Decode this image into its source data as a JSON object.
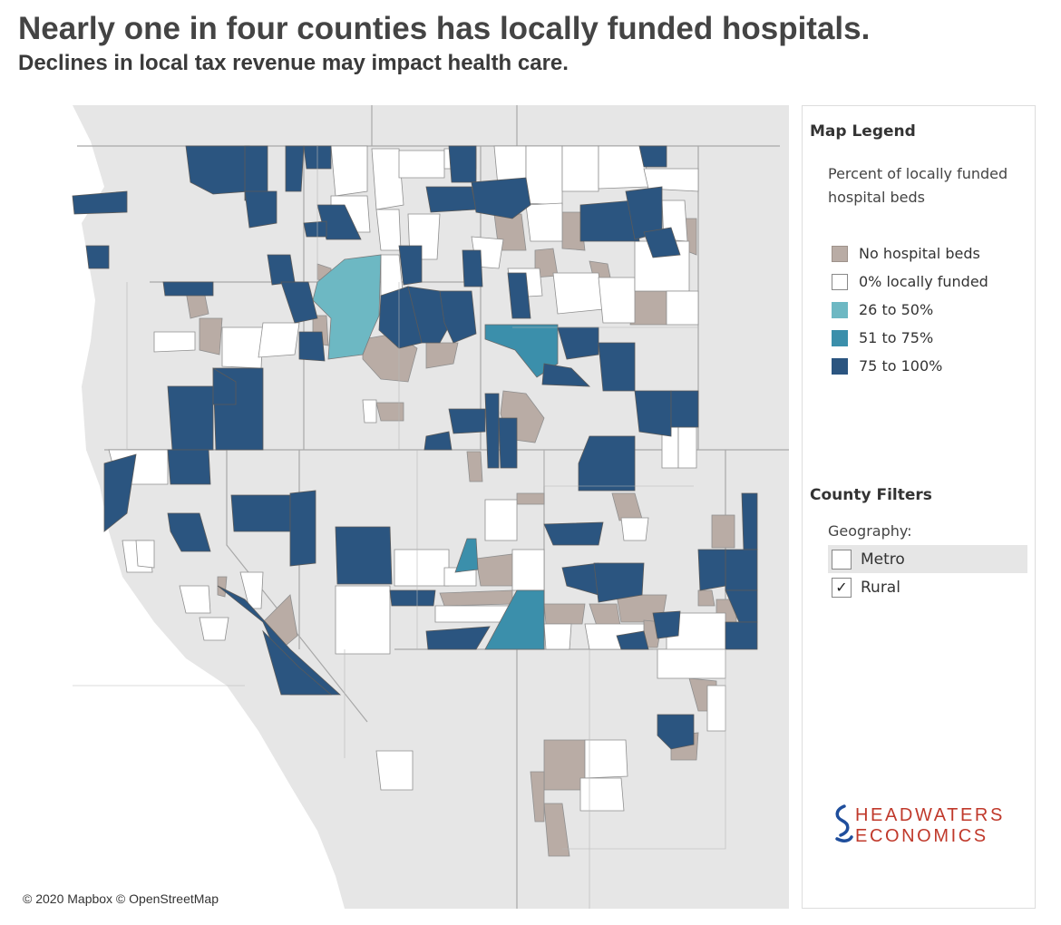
{
  "header": {
    "title": "Nearly one in four counties has locally funded hospitals.",
    "subtitle": "Declines in local tax revenue may impact health care."
  },
  "map": {
    "attribution": "© 2020 Mapbox © OpenStreetMap",
    "colors": {
      "background": "#e6e6e6",
      "state_border": "#a8a8a8",
      "county_outline": "#9a9a9a",
      "no_beds": "#b9aca5",
      "zero": "#ffffff",
      "pct_26_50": "#6db8c3",
      "pct_51_75": "#3b8fab",
      "pct_75_100": "#2b5580"
    }
  },
  "legend": {
    "heading": "Map Legend",
    "description": "Percent of locally funded hospital beds",
    "items": [
      {
        "label": "No hospital beds",
        "color": "#b9aca5"
      },
      {
        "label": "0% locally funded",
        "color": "#ffffff"
      },
      {
        "label": "26 to 50%",
        "color": "#6db8c3"
      },
      {
        "label": "51 to 75%",
        "color": "#3b8fab"
      },
      {
        "label": "75 to 100%",
        "color": "#2b5580"
      }
    ]
  },
  "filters": {
    "heading": "County Filters",
    "geography_label": "Geography:",
    "options": [
      {
        "label": "Metro",
        "checked": false,
        "mark": ""
      },
      {
        "label": "Rural",
        "checked": true,
        "mark": "✓"
      }
    ]
  },
  "logo": {
    "line1": "HEADWATERS",
    "line2": "ECONOMICS",
    "mark_icon": "river-s-logo-icon",
    "color": "#c0392b"
  }
}
